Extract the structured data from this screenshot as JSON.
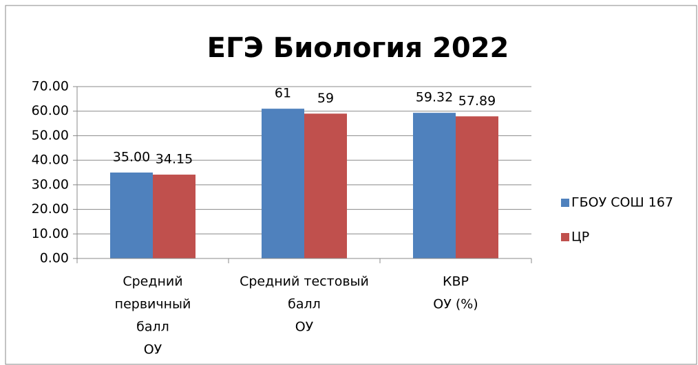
{
  "chart_data": {
    "type": "bar",
    "title": "ЕГЭ Биология 2022",
    "categories": [
      [
        "Средний",
        "первичный",
        "балл",
        "ОУ"
      ],
      [
        "Средний тестовый",
        "балл",
        "ОУ"
      ],
      [
        "КВР",
        "ОУ (%)"
      ]
    ],
    "series": [
      {
        "name": "ГБОУ СОШ 167",
        "color": "#4f81bd",
        "values": [
          35,
          61,
          59.32
        ],
        "value_labels": [
          "35.00",
          "61",
          "59.32"
        ]
      },
      {
        "name": "ЦР",
        "color": "#c0504d",
        "values": [
          34.15,
          59,
          57.89
        ],
        "value_labels": [
          "34.15",
          "59",
          "57.89"
        ]
      }
    ],
    "ylim": [
      0,
      70
    ],
    "yticks": [
      {
        "value": 0,
        "label": "0.00"
      },
      {
        "value": 10,
        "label": "10.00"
      },
      {
        "value": 20,
        "label": "20.00"
      },
      {
        "value": 30,
        "label": "30.00"
      },
      {
        "value": 40,
        "label": "40.00"
      },
      {
        "value": 50,
        "label": "50.00"
      },
      {
        "value": 60,
        "label": "60.00"
      },
      {
        "value": 70,
        "label": "70.00"
      }
    ],
    "grid": true,
    "legend": "right"
  }
}
